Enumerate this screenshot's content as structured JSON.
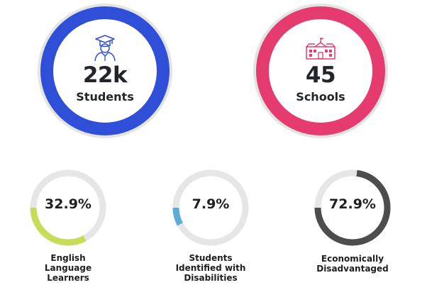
{
  "stats_top": [
    {
      "value": "22k",
      "label": "Students",
      "icon": "graduate-icon",
      "color": "#2f4fd8"
    },
    {
      "value": "45",
      "label": "Schools",
      "icon": "school-building-icon",
      "color": "#e63b6f"
    }
  ],
  "stats_bottom": [
    {
      "value": "32.9%",
      "fraction": 0.329,
      "label_lines": [
        "English",
        "Language",
        "Learners"
      ],
      "color": "#c9dc5a"
    },
    {
      "value": "7.9%",
      "fraction": 0.079,
      "label_lines": [
        "Students",
        "Identified with",
        "Disabilities"
      ],
      "color": "#5aaed6"
    },
    {
      "value": "72.9%",
      "fraction": 0.729,
      "label_lines": [
        "Economically",
        "Disadvantaged"
      ],
      "color": "#4d4d4d"
    }
  ],
  "colors": {
    "track": "#e6e6e6",
    "text": "#22262b"
  }
}
